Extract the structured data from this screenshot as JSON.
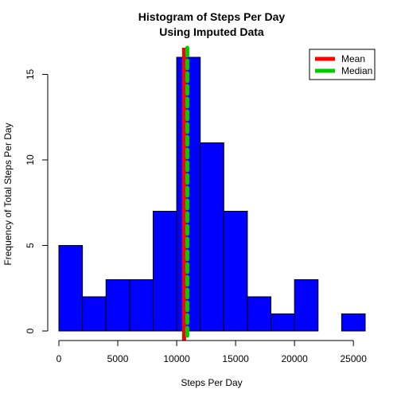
{
  "chart_data": {
    "type": "histogram",
    "title": "Histogram of Steps Per Day",
    "subtitle": "Using Imputed Data",
    "xlabel": "Steps Per Day",
    "ylabel": "Frequency of Total Steps Per Day",
    "bin_width": 2000,
    "bins": [
      {
        "start": 0,
        "end": 2000,
        "count": 5
      },
      {
        "start": 2000,
        "end": 4000,
        "count": 2
      },
      {
        "start": 4000,
        "end": 6000,
        "count": 3
      },
      {
        "start": 6000,
        "end": 8000,
        "count": 3
      },
      {
        "start": 8000,
        "end": 10000,
        "count": 7
      },
      {
        "start": 10000,
        "end": 12000,
        "count": 16
      },
      {
        "start": 12000,
        "end": 14000,
        "count": 11
      },
      {
        "start": 14000,
        "end": 16000,
        "count": 7
      },
      {
        "start": 16000,
        "end": 18000,
        "count": 2
      },
      {
        "start": 18000,
        "end": 20000,
        "count": 1
      },
      {
        "start": 20000,
        "end": 22000,
        "count": 3
      },
      {
        "start": 22000,
        "end": 24000,
        "count": 0
      },
      {
        "start": 24000,
        "end": 26000,
        "count": 1
      }
    ],
    "bar_color": "#0000ff",
    "bar_border_color": "#000000",
    "xlim": [
      0,
      26000
    ],
    "ylim": [
      0,
      16
    ],
    "xticks": [
      0,
      5000,
      10000,
      15000,
      20000,
      25000
    ],
    "yticks": [
      0,
      5,
      10,
      15
    ],
    "grid": false,
    "reference_lines": [
      {
        "name": "Mean",
        "value": 10766,
        "color": "#ff0000",
        "style": "solid"
      },
      {
        "name": "Median",
        "value": 10766,
        "color": "#00cc00",
        "style": "dashed"
      }
    ],
    "legend": {
      "position": "top-right",
      "entries": [
        {
          "label": "Mean",
          "color": "#ff0000"
        },
        {
          "label": "Median",
          "color": "#00cc00"
        }
      ]
    }
  }
}
